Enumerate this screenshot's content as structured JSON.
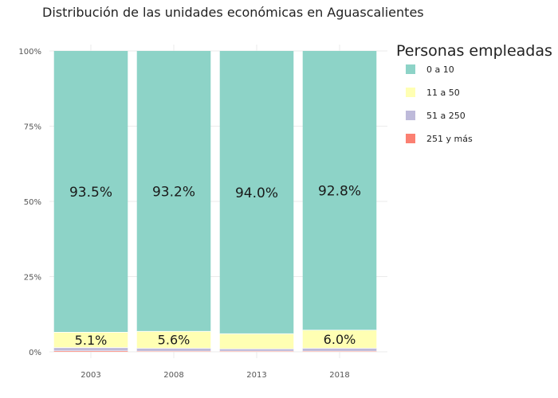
{
  "chart_data": {
    "type": "bar",
    "stacked": true,
    "title": "Distribución de las unidades económicas en Aguascalientes",
    "xlabel": "",
    "ylabel": "",
    "categories": [
      "2003",
      "2008",
      "2013",
      "2018"
    ],
    "ylim": [
      0,
      100
    ],
    "y_tick_values": [
      0,
      25,
      50,
      75,
      100
    ],
    "y_tick_labels": [
      "0%",
      "25%",
      "50%",
      "75%",
      "100%"
    ],
    "legend": {
      "title": "Personas empleadas",
      "position": "right"
    },
    "series": [
      {
        "name": "0 a 10",
        "color": "#8dd3c7",
        "values": [
          93.5,
          93.2,
          94.0,
          92.8
        ],
        "labels": [
          "93.5%",
          "93.2%",
          "94.0%",
          "92.8%"
        ]
      },
      {
        "name": "11 a 50",
        "color": "#ffffb3",
        "values": [
          5.1,
          5.6,
          5.0,
          6.0
        ],
        "labels": [
          "5.1%",
          "5.6%",
          "",
          "6.0%"
        ]
      },
      {
        "name": "51 a 250",
        "color": "#bebada",
        "values": [
          1.1,
          1.0,
          0.8,
          1.0
        ],
        "labels": [
          "",
          "",
          "",
          ""
        ]
      },
      {
        "name": "251 y más",
        "color": "#fb8072",
        "values": [
          0.3,
          0.2,
          0.2,
          0.2
        ],
        "labels": [
          "",
          "",
          "",
          ""
        ]
      }
    ],
    "grid": true
  }
}
